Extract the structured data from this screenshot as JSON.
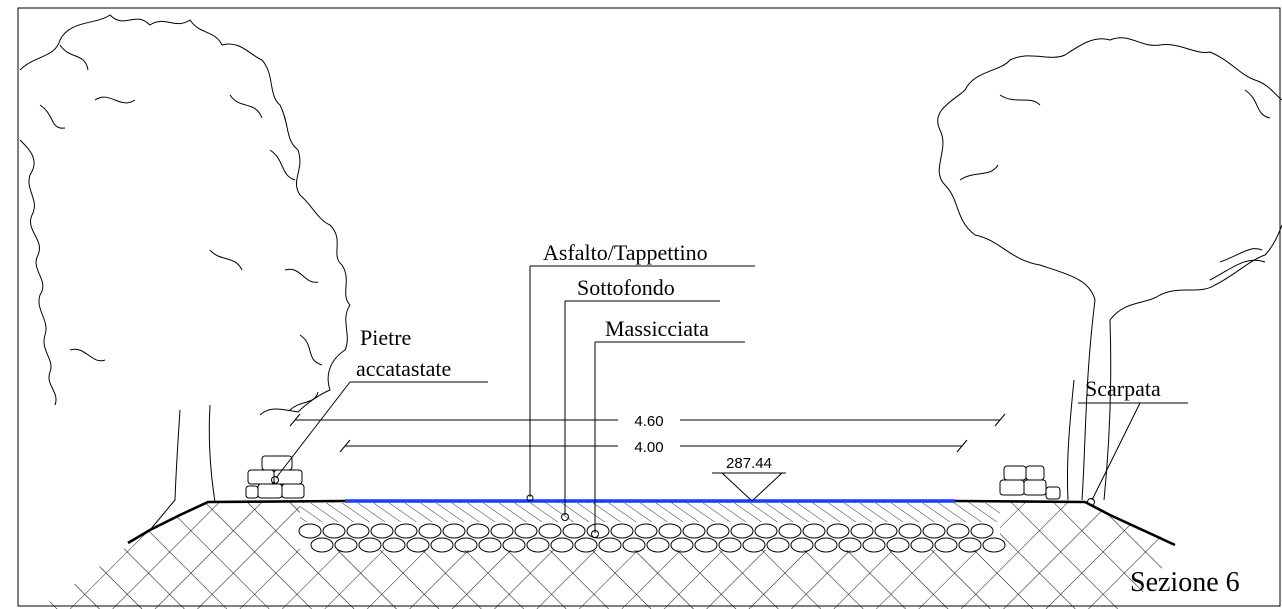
{
  "labels": {
    "asfalto": "Asfalto/Tappettino",
    "sottofondo": "Sottofondo",
    "massicciata": "Massicciata",
    "pietre_line1": "Pietre",
    "pietre_line2": "accatastate",
    "scarpata": "Scarpata"
  },
  "dimensions": {
    "outer": "4.60",
    "inner": "4.00"
  },
  "elevation": "287.44",
  "section_title": "Sezione 6",
  "colors": {
    "asphalt": "#1a3cff",
    "line": "#000000",
    "background": "#ffffff"
  }
}
